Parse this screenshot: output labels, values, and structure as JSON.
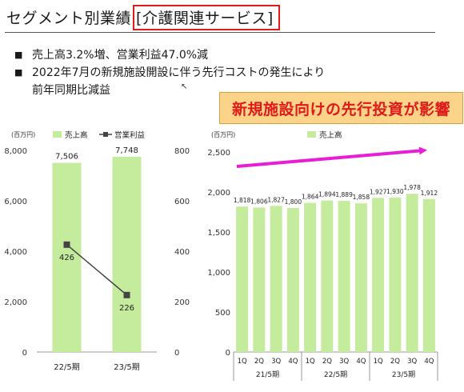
{
  "header": {
    "title_prefix": "セグメント別業績",
    "title_highlight": "[介護関連サービス]"
  },
  "bullets": [
    "売上高3.2%増、営業利益47.0%減",
    "2022年7月の新規施設開設に伴う先行コストの発生により",
    "前年同期比減益"
  ],
  "bullet_marker": "■",
  "cursor_glyph": "↖",
  "callout": {
    "text": "新規施設向けの先行投資が影響",
    "bg_color": "#fbd489",
    "text_color": "#e01919"
  },
  "colors": {
    "bar": "#c5ec9c",
    "line": "#444444",
    "arrow": "#e81ed6"
  },
  "chart_data": [
    {
      "type": "bar",
      "unit": "(百万円)",
      "legend": [
        "売上高",
        "営業利益"
      ],
      "categories": [
        "22/5期",
        "23/5期"
      ],
      "series": [
        {
          "name": "売上高",
          "type": "bar",
          "axis": "left",
          "values": [
            7506,
            7748
          ],
          "labels": [
            "7,506",
            "7,748"
          ]
        },
        {
          "name": "営業利益",
          "type": "line",
          "axis": "right",
          "values": [
            426,
            226
          ],
          "labels": [
            "426",
            "226"
          ]
        }
      ],
      "ylim": [
        0,
        8000
      ],
      "yticks": [
        "0",
        "2,000",
        "4,000",
        "6,000",
        "8,000"
      ],
      "y2lim": [
        0,
        800
      ],
      "y2ticks": [
        "0",
        "200",
        "400",
        "600",
        "800"
      ]
    },
    {
      "type": "bar",
      "unit": "(百万円)",
      "legend": [
        "売上高"
      ],
      "categories": [
        "1Q",
        "2Q",
        "3Q",
        "4Q",
        "1Q",
        "2Q",
        "3Q",
        "4Q",
        "1Q",
        "2Q",
        "3Q",
        "4Q"
      ],
      "groups": [
        "21/5期",
        "22/5期",
        "23/5期"
      ],
      "series": [
        {
          "name": "売上高",
          "values": [
            1818,
            1806,
            1827,
            1800,
            1864,
            1894,
            1889,
            1858,
            1927,
            1930,
            1978,
            1912
          ],
          "labels": [
            "1,818",
            "1,806",
            "1,827",
            "1,800",
            "1,864",
            "1,894",
            "1,889",
            "1,858",
            "1,927",
            "1,930",
            "1,978",
            "1,912"
          ]
        }
      ],
      "ylim": [
        0,
        2500
      ],
      "yticks": [
        "0",
        "500",
        "1,000",
        "1,500",
        "2,000",
        "2,500"
      ]
    }
  ]
}
